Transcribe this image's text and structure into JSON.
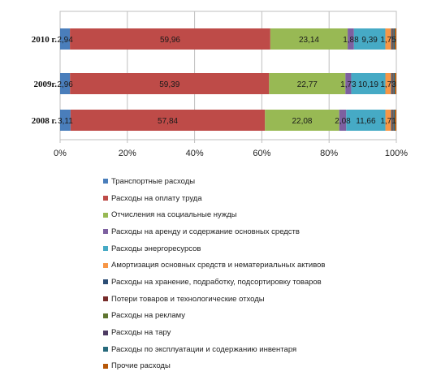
{
  "chart_data": {
    "type": "bar",
    "orientation": "horizontal",
    "stacked": "percent",
    "categories": [
      "2010 г.",
      "2009г.",
      "2008 г."
    ],
    "series": [
      {
        "name": "Транспортные расходы",
        "color": "#4a7ebb",
        "values": [
          2.94,
          2.96,
          3.11
        ],
        "labels": [
          "2,94",
          "2,96",
          "3,11"
        ]
      },
      {
        "name": "Расходы на оплату труда",
        "color": "#be4b48",
        "values": [
          59.96,
          59.39,
          57.84
        ],
        "labels": [
          "59,96",
          "59,39",
          "57,84"
        ]
      },
      {
        "name": "Отчисления на социальные нужды",
        "color": "#98b954",
        "values": [
          23.14,
          22.77,
          22.08
        ],
        "labels": [
          "23,14",
          "22,77",
          "22,08"
        ]
      },
      {
        "name": "Расходы на аренду и содержание основных средств",
        "color": "#7d60a0",
        "values": [
          1.88,
          1.73,
          2.08
        ],
        "labels": [
          "1,88",
          "1,73",
          "2,08"
        ]
      },
      {
        "name": "Расходы энергоресурсов",
        "color": "#46aac5",
        "values": [
          9.39,
          10.19,
          11.66
        ],
        "labels": [
          "9,39",
          "10,19",
          "11,66"
        ]
      },
      {
        "name": "Амортизация основных средств и нематериальных активов",
        "color": "#f79646",
        "values": [
          1.75,
          1.73,
          1.71
        ],
        "labels": [
          "1,75",
          "1,73",
          "1,71"
        ]
      },
      {
        "name": "Расходы на хранение, подработку, подсортировку товаров",
        "color": "#2c4d75",
        "values": [
          0.3,
          0.3,
          0.3
        ],
        "labels": [
          "",
          "",
          ""
        ]
      },
      {
        "name": "Потери товаров и технологические отходы",
        "color": "#772c2a",
        "values": [
          0.2,
          0.2,
          0.2
        ],
        "labels": [
          "",
          "",
          ""
        ]
      },
      {
        "name": "Расходы на рекламу",
        "color": "#5f7530",
        "values": [
          0.15,
          0.15,
          0.15
        ],
        "labels": [
          "",
          "",
          ""
        ]
      },
      {
        "name": "Расходы на тару",
        "color": "#4d3b62",
        "values": [
          0.15,
          0.15,
          0.15
        ],
        "labels": [
          "",
          "",
          ""
        ]
      },
      {
        "name": "Расходы по эксплуатации и содержанию инвентаря",
        "color": "#276a7c",
        "values": [
          0.3,
          0.3,
          0.3
        ],
        "labels": [
          "",
          "",
          ""
        ]
      },
      {
        "name": "Прочие расходы",
        "color": "#b65708",
        "values": [
          0.44,
          0.44,
          0.44
        ],
        "labels": [
          "",
          "",
          ""
        ]
      }
    ],
    "xlim": [
      0,
      100
    ],
    "xticks": [
      "0%",
      "20%",
      "40%",
      "60%",
      "80%",
      "100%"
    ],
    "grid": true,
    "legend_placement": "bottom"
  }
}
